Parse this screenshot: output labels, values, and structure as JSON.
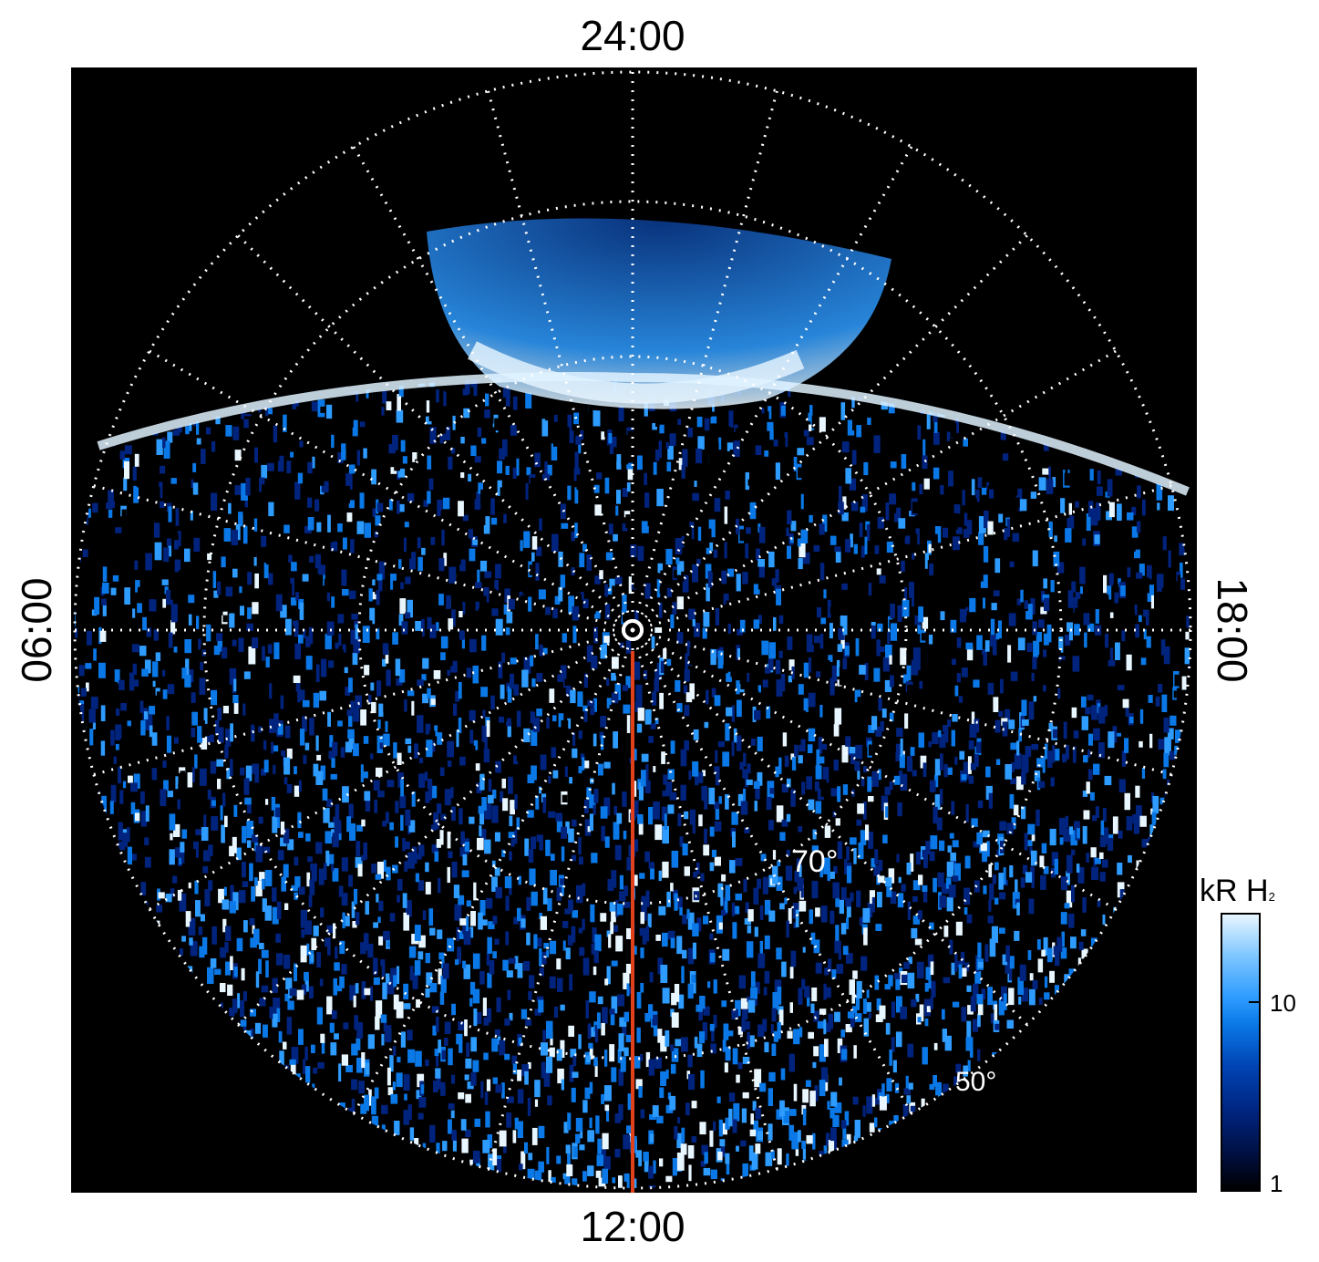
{
  "figure": {
    "time_labels": {
      "top": "24:00",
      "bottom": "12:00",
      "left": "06:00",
      "right": "18:00"
    },
    "latitude_labels": [
      "70°",
      "50°"
    ],
    "colorbar": {
      "title_main": "kR H",
      "title_sub": "2",
      "tick_labels": [
        "10",
        "1"
      ],
      "colors": [
        "#000000",
        "#00237e",
        "#0a78e6",
        "#2e9cff",
        "#e8f6ff"
      ]
    },
    "colors": {
      "background": "#000000",
      "grid": "#ffffff",
      "noon_line": "#e0401a"
    }
  }
}
